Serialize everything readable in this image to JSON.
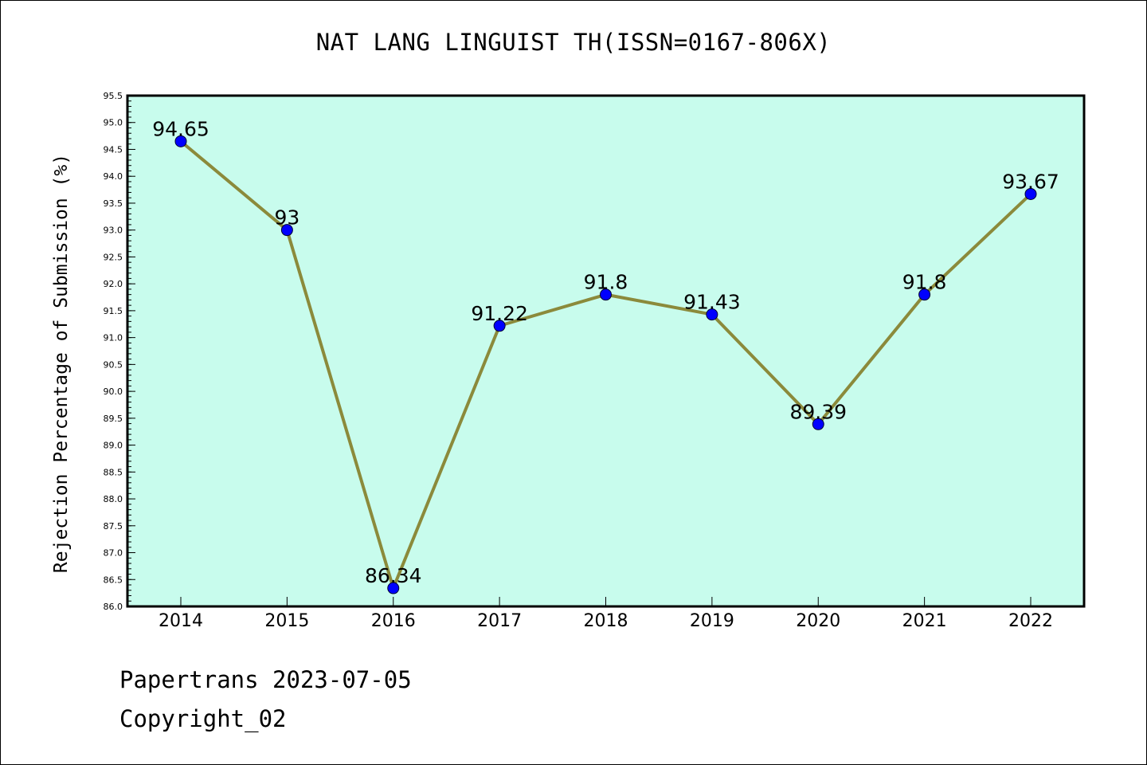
{
  "chart_data": {
    "type": "line",
    "title": "NAT LANG LINGUIST TH(ISSN=0167-806X)",
    "ylabel": "Rejection Percentage of Submission (%)",
    "xlabel": "",
    "categories": [
      "2014",
      "2015",
      "2016",
      "2017",
      "2018",
      "2019",
      "2020",
      "2021",
      "2022"
    ],
    "series": [
      {
        "values": [
          94.65,
          93,
          86.34,
          91.22,
          91.8,
          91.43,
          89.39,
          91.8,
          93.67
        ],
        "data_labels": [
          "94.65",
          "93",
          "86.34",
          "91.22",
          "91.8",
          "91.43",
          "89.39",
          "91.8",
          "93.67"
        ]
      }
    ],
    "ylim": [
      86.0,
      95.5
    ],
    "y_ticks": [
      "86.0",
      "86.5",
      "87.0",
      "87.5",
      "88.0",
      "88.5",
      "89.0",
      "89.5",
      "90.0",
      "90.5",
      "91.0",
      "91.5",
      "92.0",
      "92.5",
      "93.0",
      "93.5",
      "94.0",
      "94.5",
      "95.0",
      "95.5"
    ],
    "grid": false,
    "colors": {
      "plot_background": "#c8fced",
      "line": "#8b8a3b",
      "marker": "#0000ff"
    }
  },
  "footer": {
    "line1": "Papertrans 2023-07-05",
    "line2": "Copyright_02"
  }
}
